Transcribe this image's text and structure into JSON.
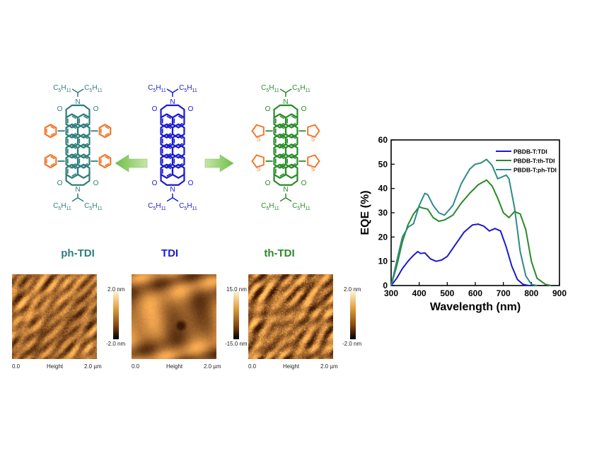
{
  "molecules": {
    "left": {
      "name": "ph-TDI",
      "sub": "C5H11",
      "color": "#2e7d7a",
      "aryl": "phenyl",
      "aryl_color": "#f07a2e"
    },
    "center": {
      "name": "TDI",
      "sub": "C5H11",
      "color": "#1a1ad0"
    },
    "right": {
      "name": "th-TDI",
      "sub": "C5H11",
      "color": "#2a8a2a",
      "aryl": "thiophene",
      "aryl_color": "#f07a2e",
      "aryl_atom": "S"
    }
  },
  "subscript_label": {
    "main": "C",
    "n5": "5",
    "h": "H",
    "n11": "11"
  },
  "atoms": {
    "nitrogen": "N",
    "oxygen": "O"
  },
  "afm": [
    {
      "scale_top": "2.0 nm",
      "scale_bottom": "-2.0 nm",
      "x_left": "0.0",
      "x_mid": "Height",
      "x_right": "2.0 µm"
    },
    {
      "scale_top": "15.0 nm",
      "scale_bottom": "-15.0 nm",
      "x_left": "0.0",
      "x_mid": "Height",
      "x_right": "2.0 µm"
    },
    {
      "scale_top": "2.0 nm",
      "scale_bottom": "-2.0 nm",
      "x_left": "0.0",
      "x_mid": "Height",
      "x_right": "2.0 µm"
    }
  ],
  "chart_data": {
    "type": "line",
    "xlabel": "Wavelength (nm)",
    "ylabel": "EQE (%)",
    "xlim": [
      300,
      900
    ],
    "ylim": [
      0,
      60
    ],
    "xticks": [
      300,
      400,
      500,
      600,
      700,
      800,
      900
    ],
    "yticks": [
      0,
      10,
      20,
      30,
      40,
      50,
      60
    ],
    "legend_position": "top-right",
    "series": [
      {
        "name": "PBDB-T:TDI",
        "color": "#1a1ad0",
        "x": [
          300,
          320,
          340,
          360,
          380,
          395,
          405,
          420,
          440,
          460,
          480,
          500,
          530,
          560,
          590,
          610,
          630,
          650,
          670,
          690,
          710,
          730,
          750,
          770,
          790,
          800
        ],
        "y": [
          0,
          3,
          7,
          10,
          12.5,
          14,
          13.2,
          13.5,
          11,
          10,
          10.5,
          12,
          17,
          22,
          25,
          25.3,
          24.5,
          22.5,
          23.5,
          22.5,
          16,
          8,
          2.5,
          0.5,
          0,
          0
        ]
      },
      {
        "name": "PBDB-T:th-TDI",
        "color": "#2a8a2a",
        "x": [
          300,
          320,
          340,
          360,
          380,
          400,
          410,
          430,
          450,
          470,
          490,
          520,
          550,
          580,
          610,
          640,
          660,
          680,
          700,
          720,
          740,
          760,
          780,
          800,
          820,
          850,
          870
        ],
        "y": [
          0,
          8,
          18,
          25,
          29.5,
          32.5,
          32,
          31.5,
          28,
          26.5,
          27,
          29,
          34,
          38,
          41.5,
          43.5,
          41,
          36,
          30,
          28,
          30.5,
          29.5,
          23,
          10,
          3,
          0.5,
          0
        ]
      },
      {
        "name": "PBDB-T:ph-TDI",
        "color": "#2e8a85",
        "x": [
          300,
          320,
          340,
          360,
          380,
          400,
          420,
          430,
          450,
          470,
          490,
          520,
          550,
          580,
          600,
          620,
          640,
          660,
          680,
          700,
          710,
          720,
          740,
          760,
          780,
          800,
          820
        ],
        "y": [
          0,
          10,
          20,
          24,
          25.5,
          33,
          38,
          37.5,
          33,
          30,
          29,
          33,
          42,
          48,
          50,
          50.5,
          52,
          49.5,
          44,
          45,
          45.5,
          44,
          32,
          14,
          4,
          0.5,
          0
        ]
      }
    ]
  }
}
